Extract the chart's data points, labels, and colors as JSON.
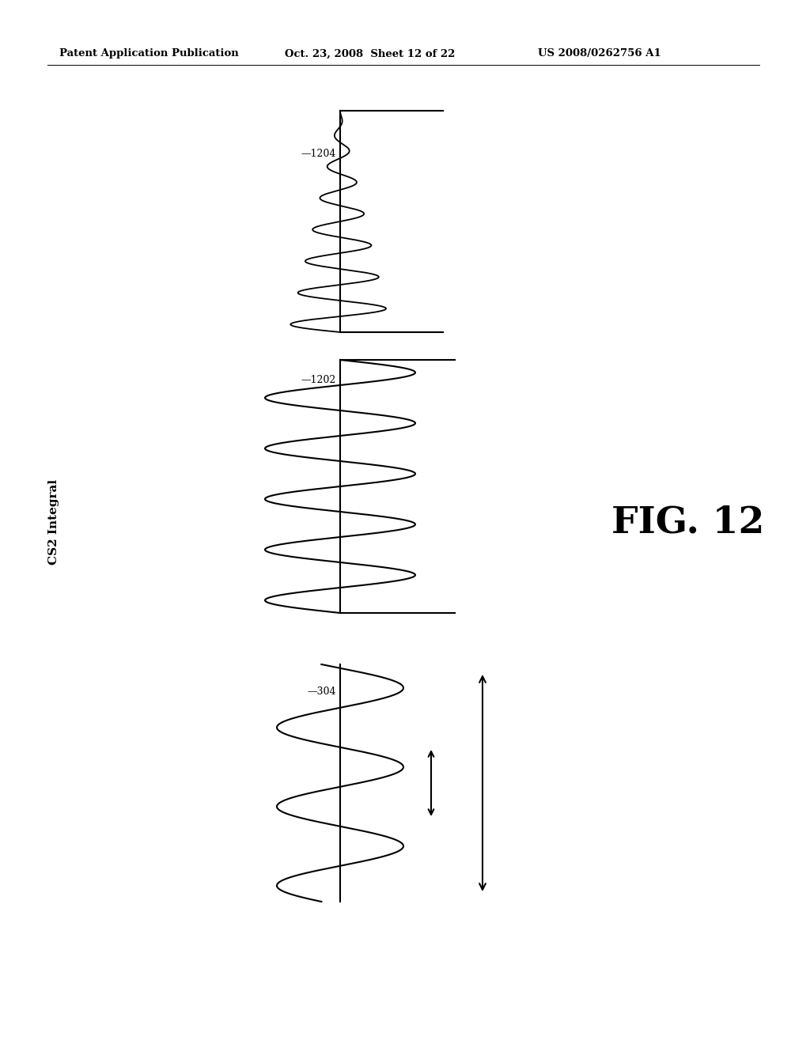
{
  "bg_color": "#ffffff",
  "text_color": "#000000",
  "header_left": "Patent Application Publication",
  "header_mid": "Oct. 23, 2008  Sheet 12 of 22",
  "header_right": "US 2008/0262756 A1",
  "fig_label": "FIG. 12",
  "ylabel": "CS2 Integral",
  "label_304": "304",
  "label_1202": "1202",
  "label_1204": "1204"
}
